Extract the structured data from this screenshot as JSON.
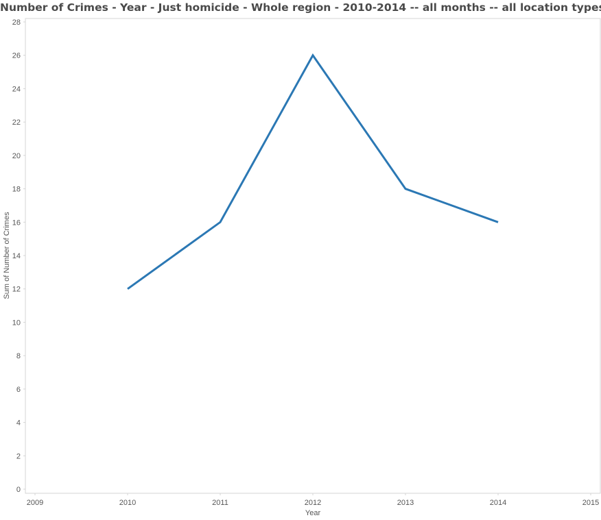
{
  "chart_data": {
    "type": "line",
    "title": "Number of Crimes - Year - Just homicide - Whole region - 2010-2014 -- all months -- all location types",
    "xlabel": "Year",
    "ylabel": "Sum of Number of Crimes",
    "x": [
      2010,
      2011,
      2012,
      2013,
      2014
    ],
    "series": [
      {
        "values": [
          12,
          16,
          26,
          18,
          16
        ],
        "color": "#2b78b4"
      }
    ],
    "xlim": [
      2009,
      2015
    ],
    "ylim": [
      0,
      28
    ],
    "x_ticks": [
      "2009",
      "2010",
      "2011",
      "2012",
      "2013",
      "2014",
      "2015"
    ],
    "y_ticks": [
      "0",
      "2",
      "4",
      "6",
      "8",
      "10",
      "12",
      "14",
      "16",
      "18",
      "20",
      "22",
      "24",
      "26",
      "28"
    ],
    "grid": false,
    "legend": "none"
  }
}
